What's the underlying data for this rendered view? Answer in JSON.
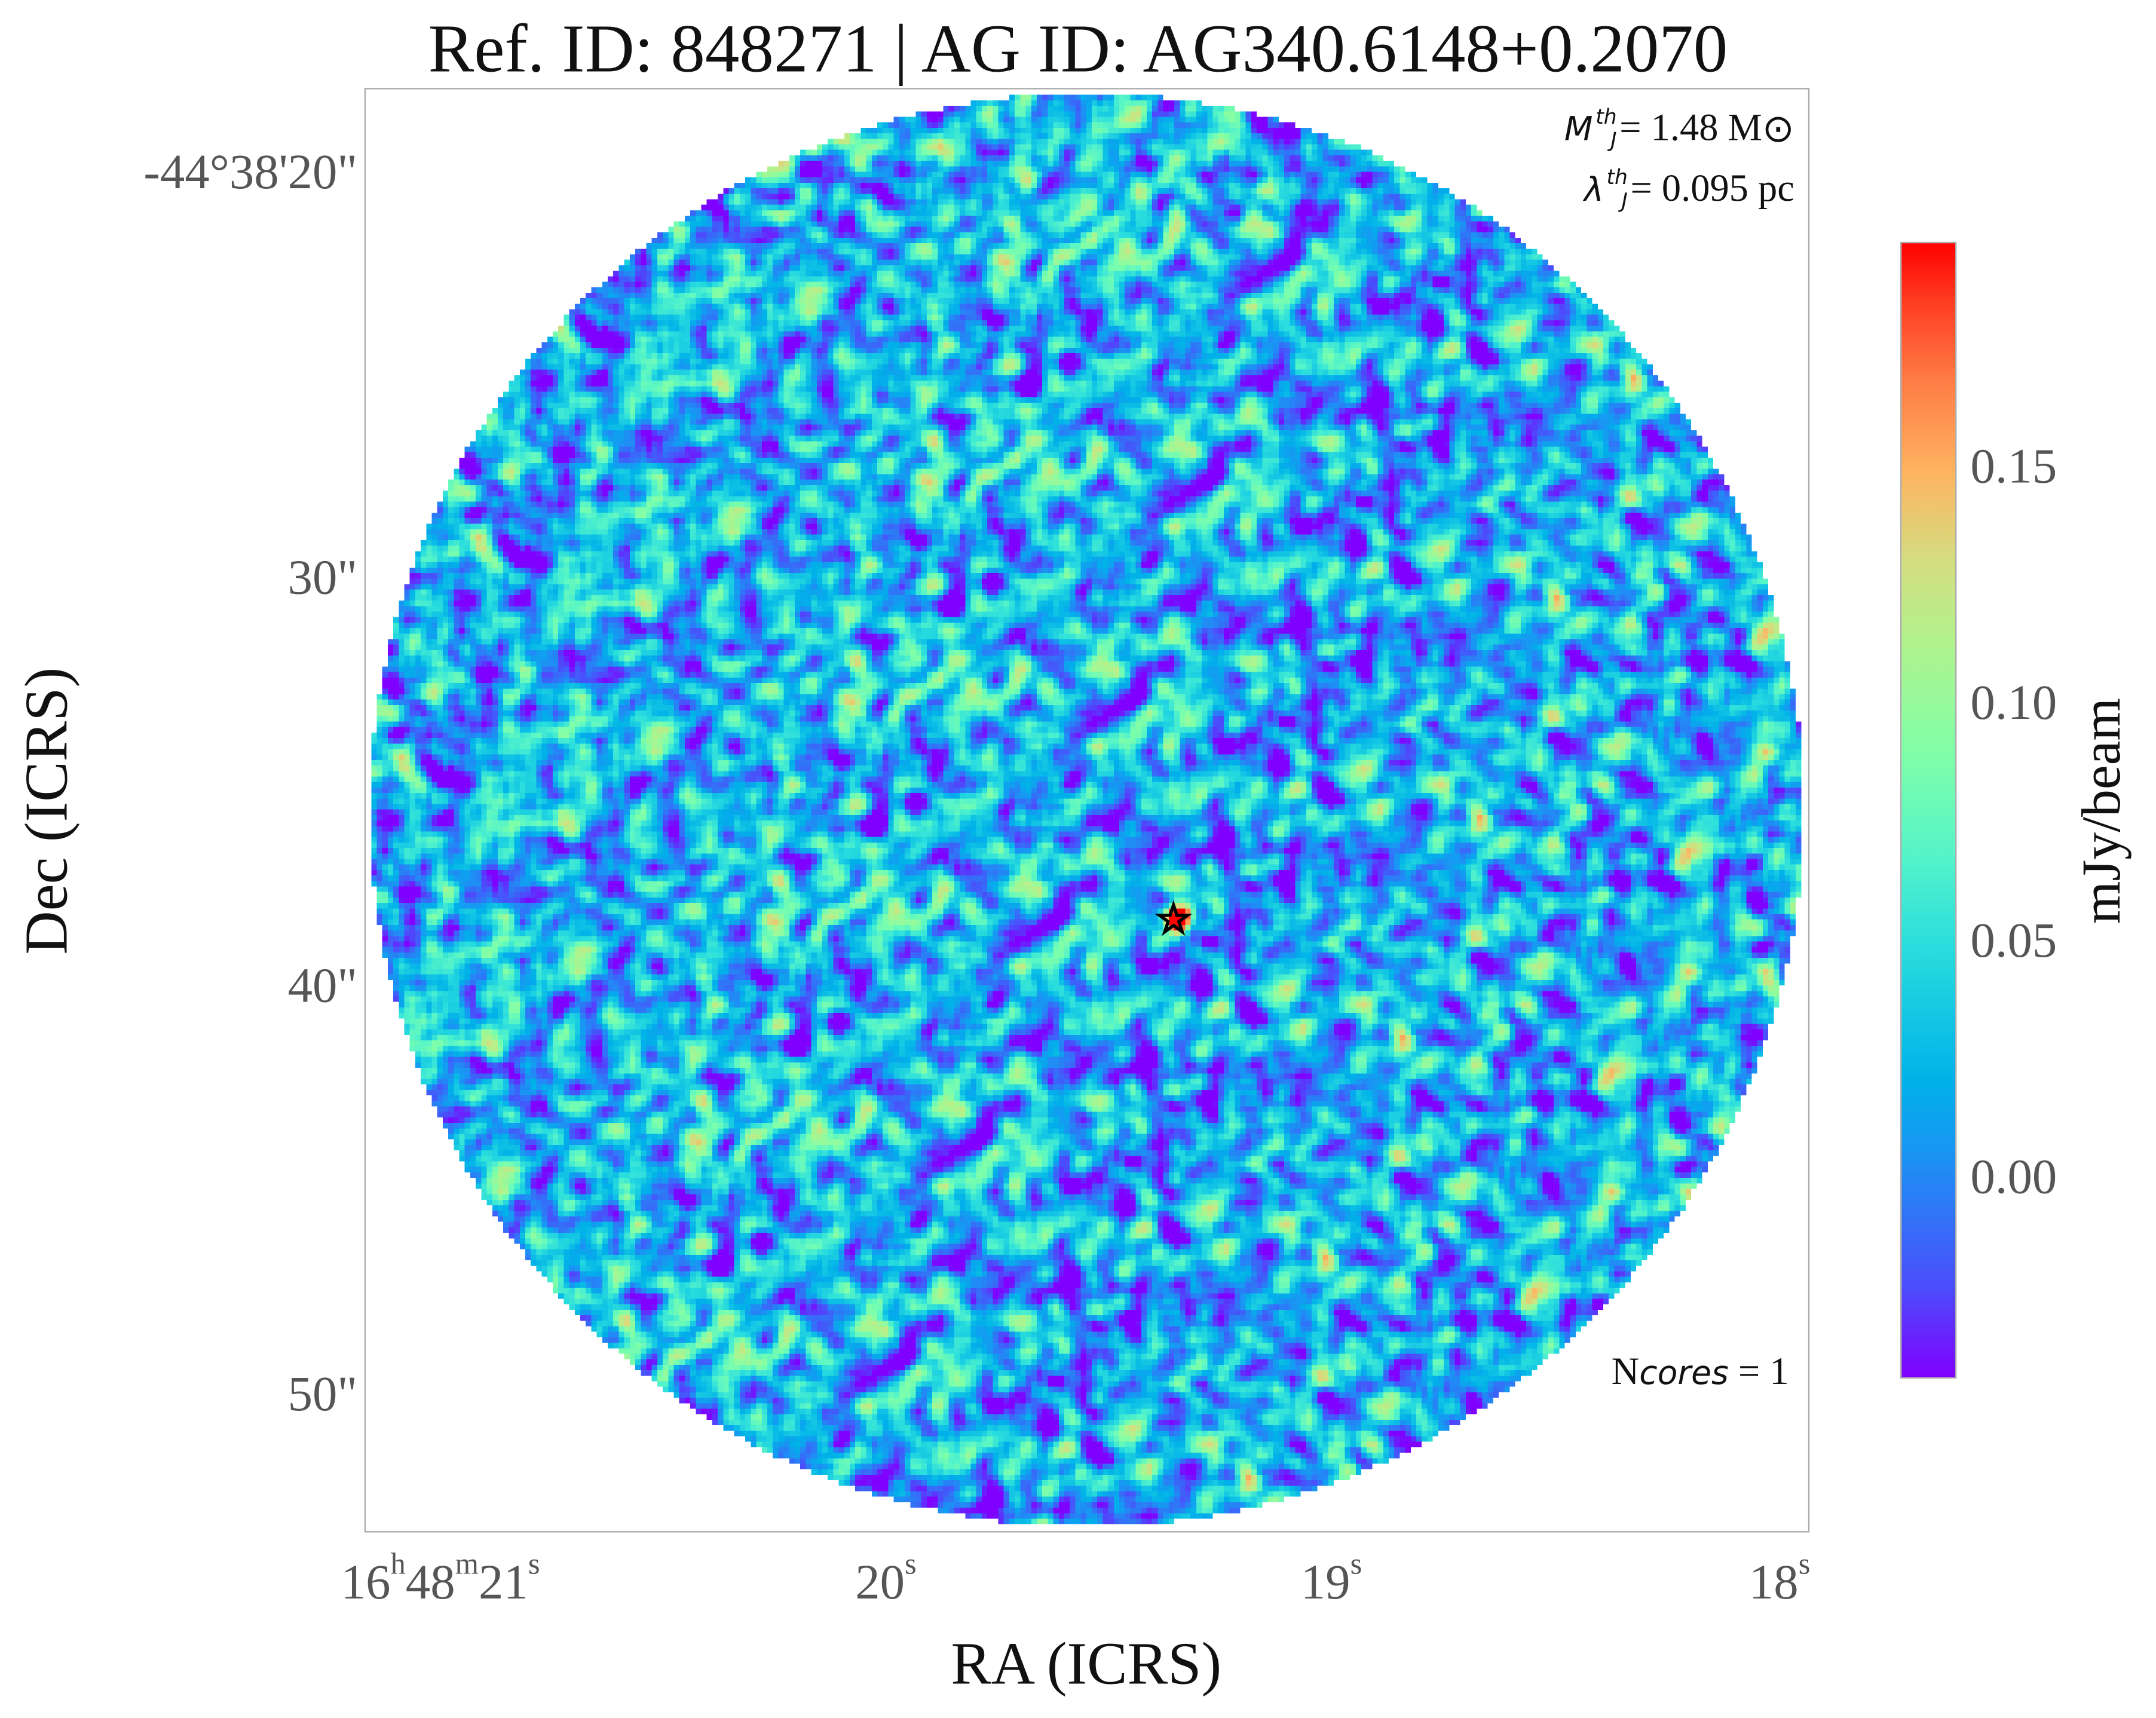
{
  "chart_data": {
    "type": "heatmap",
    "title": "Ref. ID: 848271 | AG ID: AG340.6148+0.2070",
    "xlabel": "RA (ICRS)",
    "ylabel": "Dec (ICRS)",
    "x_ticks": [
      {
        "h": "16",
        "m": "48",
        "s": "21",
        "label_h": "h",
        "label_m": "m",
        "label_s": "s"
      },
      {
        "s": "20",
        "label_s": "s"
      },
      {
        "s": "19",
        "label_s": "s"
      },
      {
        "s": "18",
        "label_s": "s"
      }
    ],
    "y_ticks": [
      "-44°38'20\"",
      "30\"",
      "40\"",
      "50\""
    ],
    "colorbar": {
      "label": "mJy/beam",
      "colormap": "rainbow",
      "ticks": [
        "0.15",
        "0.10",
        "0.05",
        "0.00"
      ],
      "range": [
        -0.042,
        0.197
      ]
    },
    "annotations": {
      "mass_label": "M",
      "mass_sub": "J",
      "mass_sup": "th",
      "mass_value": "= 1.48 M",
      "mass_unit_symbol": "⊙",
      "lambda_label": "λ",
      "lambda_sub": "J",
      "lambda_sup": "th",
      "lambda_value": "= 0.095 pc",
      "ncores_label": "N",
      "ncores_sub": "cores",
      "ncores_value": " = 1"
    },
    "marker": {
      "symbol": "☆",
      "shape": "star",
      "location": "central core"
    },
    "field_shape": "circular",
    "grid": false
  }
}
